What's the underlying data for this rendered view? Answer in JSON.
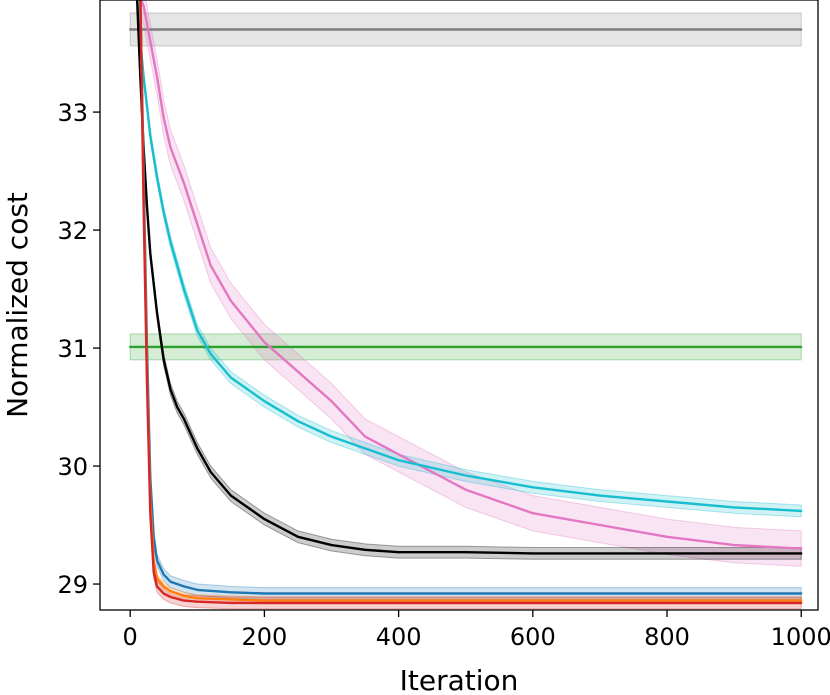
{
  "chart_data": {
    "type": "line",
    "title": "",
    "xlabel": "Iteration",
    "ylabel": "Normalized cost",
    "xlim": [
      -45,
      1025
    ],
    "ylim": [
      28.78,
      33.95
    ],
    "xticks": [
      0,
      200,
      400,
      600,
      800,
      1000
    ],
    "yticks": [
      29,
      30,
      31,
      32,
      33
    ],
    "grid": false,
    "legend": "none",
    "series": [
      {
        "color": "#7f7f7f",
        "band": 0.14,
        "x": [
          0,
          1000
        ],
        "y": [
          33.7,
          33.7
        ]
      },
      {
        "color": "#2ca02c",
        "band": 0.11,
        "x": [
          0,
          1000
        ],
        "y": [
          31.01,
          31.01
        ]
      },
      {
        "color": "#e377c2",
        "band": 0.15,
        "x": [
          12,
          20,
          30,
          40,
          50,
          60,
          80,
          100,
          120,
          150,
          200,
          250,
          300,
          350,
          400,
          450,
          500,
          600,
          700,
          800,
          900,
          1000
        ],
        "y": [
          34.0,
          33.9,
          33.6,
          33.3,
          32.95,
          32.7,
          32.4,
          32.05,
          31.7,
          31.4,
          31.05,
          30.8,
          30.55,
          30.25,
          30.1,
          29.95,
          29.8,
          29.6,
          29.5,
          29.4,
          29.33,
          29.3
        ]
      },
      {
        "color": "#17becf",
        "band": 0.05,
        "x": [
          10,
          15,
          20,
          25,
          30,
          40,
          50,
          60,
          80,
          100,
          120,
          150,
          200,
          250,
          300,
          400,
          500,
          600,
          700,
          800,
          900,
          1000
        ],
        "y": [
          34.0,
          33.6,
          33.3,
          33.05,
          32.8,
          32.45,
          32.15,
          31.9,
          31.5,
          31.15,
          30.95,
          30.75,
          30.55,
          30.38,
          30.25,
          30.05,
          29.92,
          29.82,
          29.75,
          29.7,
          29.65,
          29.62
        ]
      },
      {
        "color": "#000000",
        "band": 0.05,
        "x": [
          10,
          15,
          20,
          25,
          30,
          40,
          50,
          60,
          70,
          80,
          100,
          120,
          150,
          200,
          250,
          300,
          350,
          400,
          500,
          600,
          800,
          1000
        ],
        "y": [
          34.0,
          33.3,
          32.7,
          32.2,
          31.8,
          31.3,
          30.9,
          30.65,
          30.5,
          30.4,
          30.15,
          29.95,
          29.75,
          29.55,
          29.4,
          29.33,
          29.29,
          29.27,
          29.27,
          29.26,
          29.26,
          29.26
        ]
      },
      {
        "color": "#1f77b4",
        "band": 0.05,
        "x": [
          15,
          20,
          25,
          30,
          35,
          40,
          50,
          60,
          80,
          100,
          150,
          200,
          300,
          400,
          600,
          800,
          1000
        ],
        "y": [
          34.0,
          32.5,
          31.0,
          29.9,
          29.4,
          29.2,
          29.08,
          29.02,
          28.98,
          28.95,
          28.93,
          28.92,
          28.92,
          28.92,
          28.92,
          28.92,
          28.92
        ]
      },
      {
        "color": "#ff7f0e",
        "band": 0.03,
        "x": [
          15,
          20,
          25,
          30,
          35,
          40,
          50,
          60,
          80,
          100,
          150,
          200,
          300,
          400,
          600,
          800,
          1000
        ],
        "y": [
          34.0,
          32.3,
          30.8,
          29.7,
          29.2,
          29.05,
          28.98,
          28.94,
          28.9,
          28.88,
          28.87,
          28.86,
          28.86,
          28.86,
          28.86,
          28.86,
          28.86
        ]
      },
      {
        "color": "#d62728",
        "band": 0.05,
        "x": [
          15,
          20,
          25,
          30,
          35,
          40,
          50,
          60,
          80,
          100,
          150,
          200,
          300,
          400,
          600,
          800,
          1000
        ],
        "y": [
          34.0,
          32.2,
          30.7,
          29.6,
          29.1,
          28.98,
          28.92,
          28.89,
          28.86,
          28.85,
          28.84,
          28.84,
          28.84,
          28.84,
          28.84,
          28.84,
          28.84
        ]
      }
    ]
  }
}
